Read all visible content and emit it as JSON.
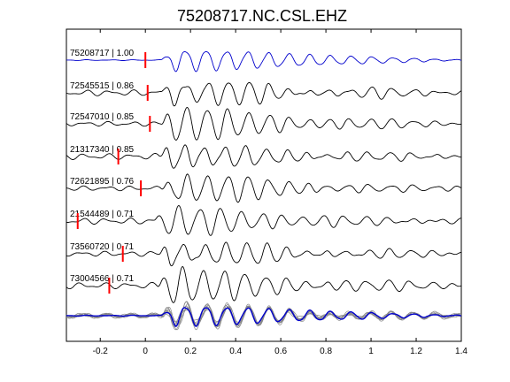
{
  "chart_data": {
    "type": "line",
    "title": "75208717.NC.CSL.EHZ",
    "xlabel": "",
    "ylabel": "",
    "xlim": [
      -0.35,
      1.4
    ],
    "xticks": [
      -0.2,
      0,
      0.2,
      0.4,
      0.6,
      0.8,
      1,
      1.2,
      1.4
    ],
    "xtick_labels": [
      "-0.2",
      "0",
      "0.2",
      "0.4",
      "0.6",
      "0.8",
      "1",
      "1.2",
      "1.4"
    ],
    "grid": false,
    "legend": "none",
    "colors": {
      "reference": "#0000cc",
      "trace": "#000000",
      "pick": "#ff0000",
      "stack": "#888888"
    },
    "series": [
      {
        "label": "75208717 | 1.00",
        "pick_time": 0.0,
        "reference": true
      },
      {
        "label": "72545515 | 0.86",
        "pick_time": 0.01,
        "reference": false
      },
      {
        "label": "72547010 | 0.85",
        "pick_time": 0.02,
        "reference": false
      },
      {
        "label": "21317340 | 0.85",
        "pick_time": -0.12,
        "reference": false
      },
      {
        "label": "72621895 | 0.76",
        "pick_time": -0.02,
        "reference": false
      },
      {
        "label": "21544489 | 0.71",
        "pick_time": -0.3,
        "reference": false
      },
      {
        "label": "73560720 | 0.71",
        "pick_time": -0.1,
        "reference": false
      },
      {
        "label": "73004566 | 0.71",
        "pick_time": -0.16,
        "reference": false
      }
    ],
    "stack": {
      "description_hidden": true
    }
  }
}
